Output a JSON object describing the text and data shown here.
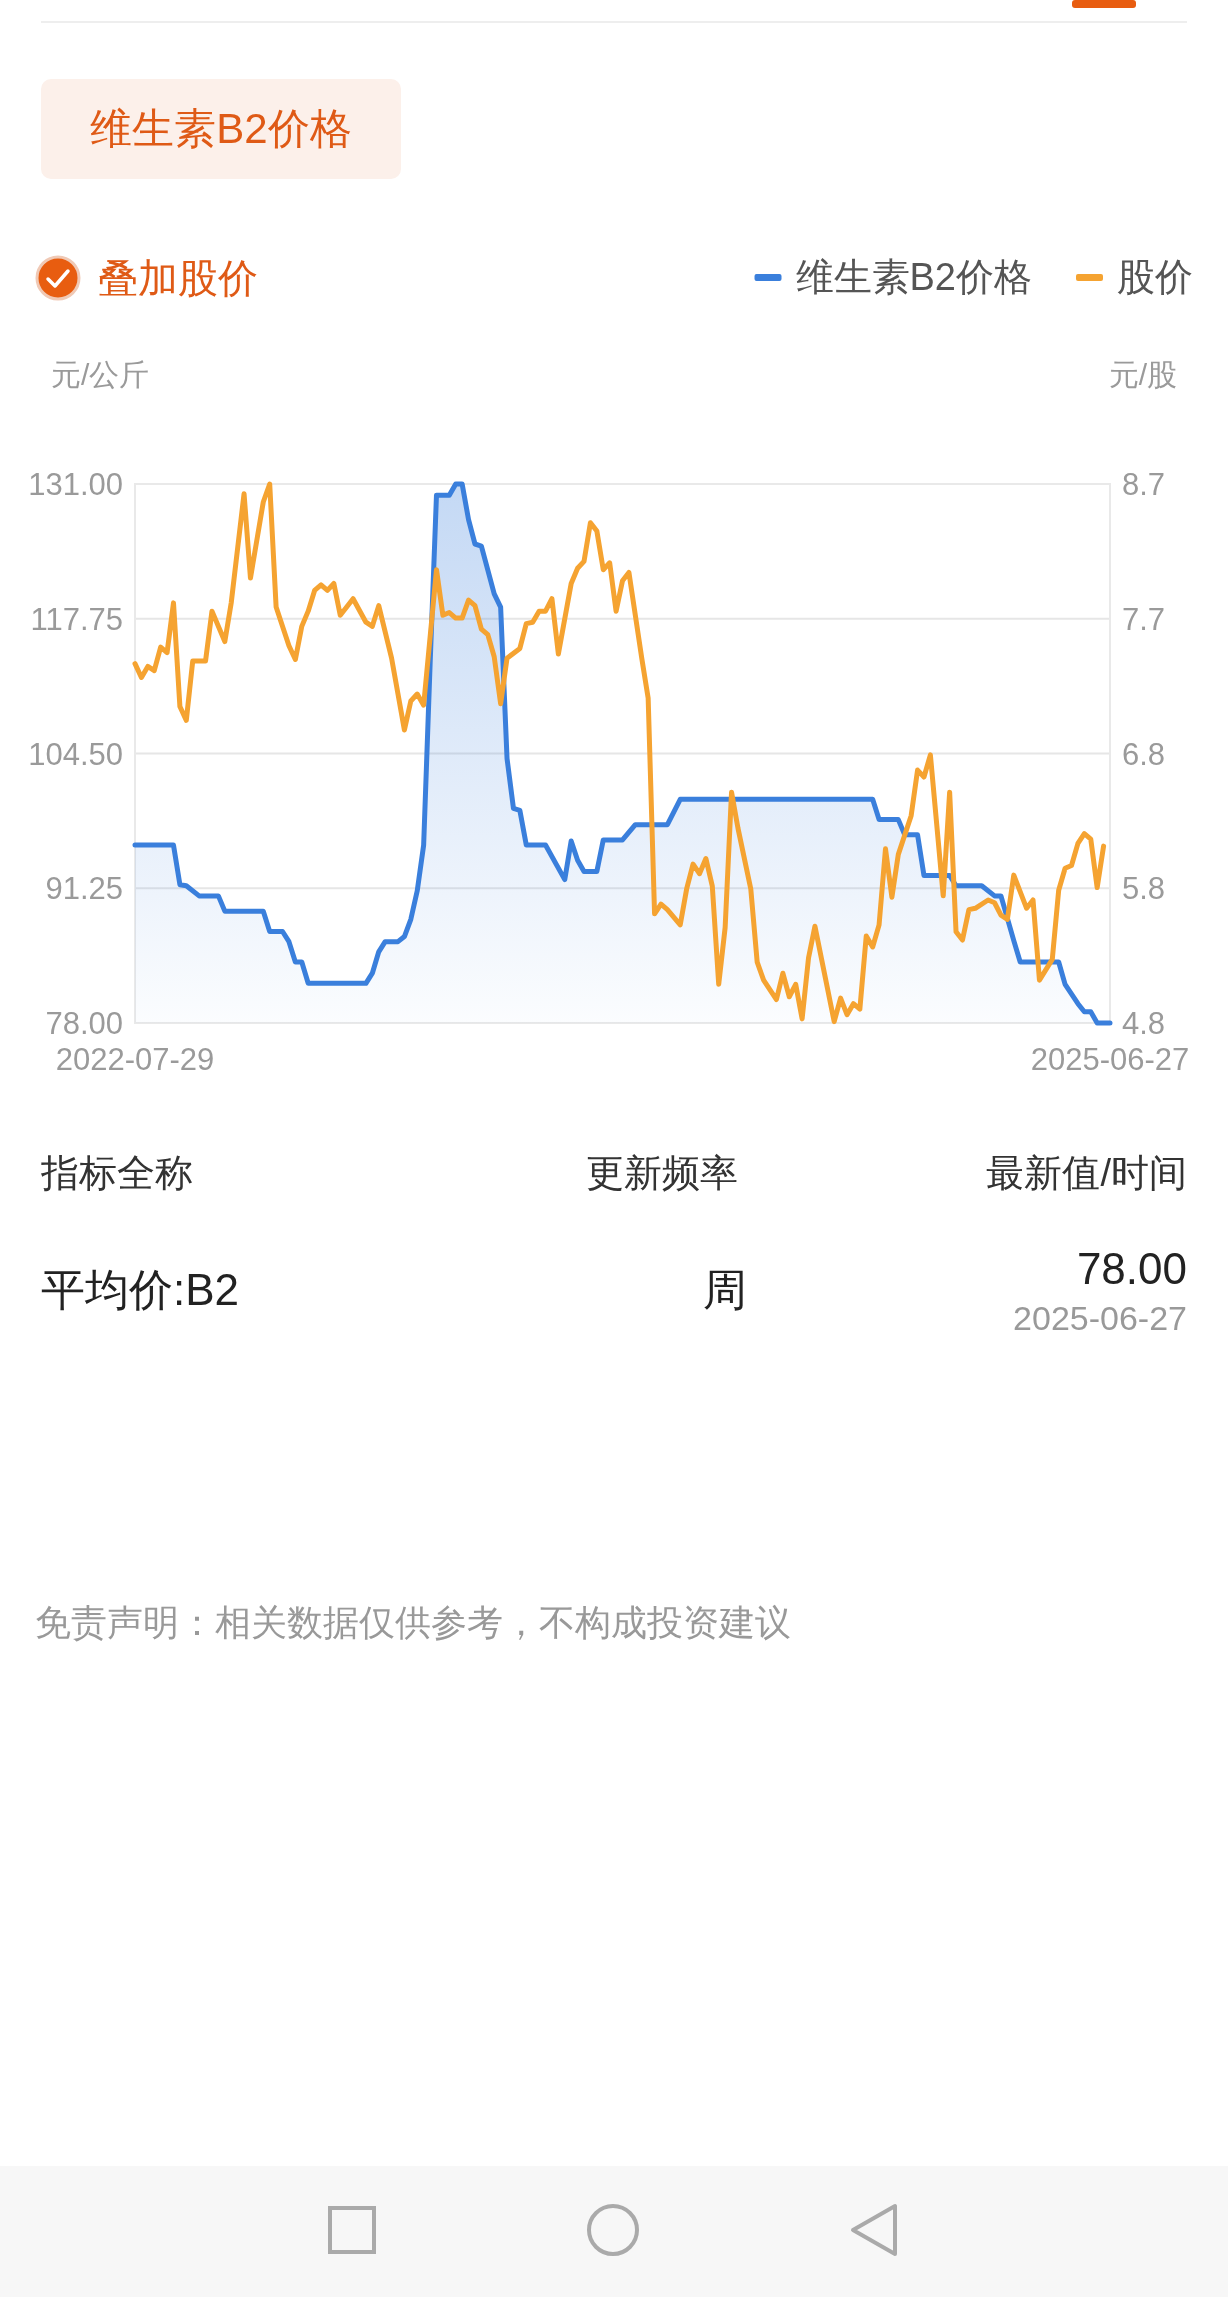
{
  "chart_data": {
    "type": "line",
    "title": "维生素B2价格",
    "ylabel": "元/公斤",
    "y2label": "元/股",
    "xlim": [
      "2022-07-29",
      "2025-06-27"
    ],
    "xticks": [
      "2022-07-29",
      "2025-06-27"
    ],
    "ylim": [
      78,
      131
    ],
    "yticks": [
      {
        "value": 78,
        "label": "78.00"
      },
      {
        "value": 91.25,
        "label": "91.25"
      },
      {
        "value": 104.5,
        "label": "104.50"
      },
      {
        "value": 117.75,
        "label": "117.75"
      },
      {
        "value": 131,
        "label": "131.00"
      }
    ],
    "y2lim": [
      4.8,
      8.7
    ],
    "y2ticks": [
      {
        "value": 4.8,
        "label": "4.8"
      },
      {
        "value": 5.775,
        "label": "5.8"
      },
      {
        "value": 6.75,
        "label": "6.8"
      },
      {
        "value": 7.725,
        "label": "7.7"
      },
      {
        "value": 8.7,
        "label": "8.7"
      }
    ],
    "grid": "y",
    "legend": "top right",
    "series": [
      {
        "name": "维生素B2价格",
        "type": "area",
        "color": "#3a7fdc",
        "x": [
          "2022-07-29",
          "2022-09-09",
          "2022-09-16",
          "2022-09-23",
          "2022-10-07",
          "2022-10-28",
          "2022-11-04",
          "2022-12-16",
          "2022-12-23",
          "2023-01-06",
          "2023-01-13",
          "2023-01-20",
          "2023-01-27",
          "2023-02-03",
          "2023-04-07",
          "2023-04-14",
          "2023-04-21",
          "2023-04-28",
          "2023-05-12",
          "2023-05-19",
          "2023-05-26",
          "2023-06-02",
          "2023-06-09",
          "2023-06-16",
          "2023-06-23",
          "2023-07-07",
          "2023-07-14",
          "2023-07-21",
          "2023-07-28",
          "2023-08-04",
          "2023-08-11",
          "2023-08-25",
          "2023-09-01",
          "2023-09-08",
          "2023-09-15",
          "2023-09-22",
          "2023-09-29",
          "2023-10-20",
          "2023-11-10",
          "2023-11-17",
          "2023-11-24",
          "2023-12-01",
          "2023-12-15",
          "2023-12-22",
          "2024-01-12",
          "2024-01-26",
          "2024-03-01",
          "2024-03-15",
          "2024-10-11",
          "2024-10-18",
          "2024-11-08",
          "2024-11-15",
          "2024-11-29",
          "2024-12-06",
          "2025-01-03",
          "2025-01-10",
          "2025-02-07",
          "2025-02-21",
          "2025-02-28",
          "2025-03-14",
          "2025-03-21",
          "2025-05-02",
          "2025-05-09",
          "2025-05-23",
          "2025-05-30",
          "2025-06-06",
          "2025-06-13",
          "2025-06-27"
        ],
        "values": [
          95.5,
          95.5,
          91.6,
          91.5,
          90.5,
          90.5,
          89.0,
          89.0,
          87.0,
          87.0,
          86.0,
          84.0,
          84.0,
          81.9,
          81.9,
          82.9,
          85.0,
          86.0,
          86.0,
          86.5,
          88.2,
          91.0,
          95.5,
          113.2,
          129.9,
          129.9,
          131.0,
          131.0,
          127.5,
          125.1,
          124.9,
          120.2,
          118.9,
          104.0,
          99.1,
          98.9,
          95.5,
          95.5,
          92.1,
          95.9,
          94.0,
          92.9,
          92.9,
          96.0,
          96.0,
          97.5,
          97.5,
          100.0,
          100.0,
          98.0,
          98.0,
          96.5,
          96.5,
          92.5,
          92.5,
          91.5,
          91.5,
          90.5,
          90.5,
          86.1,
          84.0,
          84.0,
          81.8,
          79.9,
          79.1,
          79.1,
          78.0,
          78.0
        ]
      },
      {
        "name": "股价",
        "color": "#f5a331",
        "axis": "y2",
        "x": [
          "2022-07-29",
          "2022-08-05",
          "2022-08-12",
          "2022-08-19",
          "2022-08-26",
          "2022-09-02",
          "2022-09-09",
          "2022-09-16",
          "2022-09-23",
          "2022-09-30",
          "2022-10-14",
          "2022-10-21",
          "2022-11-04",
          "2022-11-11",
          "2022-11-25",
          "2022-12-02",
          "2022-12-16",
          "2022-12-23",
          "2022-12-30",
          "2023-01-13",
          "2023-01-20",
          "2023-01-27",
          "2023-02-03",
          "2023-02-10",
          "2023-02-17",
          "2023-02-24",
          "2023-03-03",
          "2023-03-10",
          "2023-03-24",
          "2023-04-07",
          "2023-04-14",
          "2023-04-21",
          "2023-05-05",
          "2023-05-19",
          "2023-05-26",
          "2023-06-02",
          "2023-06-09",
          "2023-06-23",
          "2023-06-30",
          "2023-07-07",
          "2023-07-14",
          "2023-07-21",
          "2023-07-28",
          "2023-08-04",
          "2023-08-11",
          "2023-08-18",
          "2023-08-25",
          "2023-09-01",
          "2023-09-08",
          "2023-09-22",
          "2023-09-29",
          "2023-10-06",
          "2023-10-13",
          "2023-10-20",
          "2023-10-27",
          "2023-11-03",
          "2023-11-17",
          "2023-11-24",
          "2023-12-01",
          "2023-12-08",
          "2023-12-15",
          "2023-12-22",
          "2023-12-29",
          "2024-01-05",
          "2024-01-12",
          "2024-01-19",
          "2024-02-02",
          "2024-02-09",
          "2024-02-16",
          "2024-02-23",
          "2024-03-01",
          "2024-03-15",
          "2024-03-22",
          "2024-03-29",
          "2024-04-05",
          "2024-04-12",
          "2024-04-19",
          "2024-04-26",
          "2024-05-03",
          "2024-05-10",
          "2024-05-17",
          "2024-05-31",
          "2024-06-07",
          "2024-06-14",
          "2024-06-28",
          "2024-07-05",
          "2024-07-12",
          "2024-07-19",
          "2024-07-26",
          "2024-08-02",
          "2024-08-09",
          "2024-08-30",
          "2024-09-06",
          "2024-09-13",
          "2024-09-20",
          "2024-09-27",
          "2024-10-04",
          "2024-10-11",
          "2024-10-18",
          "2024-10-25",
          "2024-11-01",
          "2024-11-08",
          "2024-11-22",
          "2024-11-29",
          "2024-12-06",
          "2024-12-13",
          "2024-12-27",
          "2025-01-03",
          "2025-01-10",
          "2025-01-17",
          "2025-01-24",
          "2025-01-31",
          "2025-02-14",
          "2025-02-21",
          "2025-02-28",
          "2025-03-07",
          "2025-03-14",
          "2025-03-28",
          "2025-04-04",
          "2025-04-11",
          "2025-04-25",
          "2025-05-02",
          "2025-05-09",
          "2025-05-16",
          "2025-05-23",
          "2025-05-30",
          "2025-06-06",
          "2025-06-13",
          "2025-06-20"
        ],
        "values": [
          7.4,
          7.3,
          7.38,
          7.35,
          7.52,
          7.48,
          7.84,
          7.09,
          6.99,
          7.42,
          7.42,
          7.78,
          7.56,
          7.84,
          8.63,
          8.02,
          8.57,
          8.7,
          7.81,
          7.53,
          7.43,
          7.67,
          7.78,
          7.93,
          7.97,
          7.93,
          7.98,
          7.75,
          7.87,
          7.7,
          7.67,
          7.82,
          7.44,
          6.92,
          7.13,
          7.18,
          7.1,
          8.08,
          7.75,
          7.77,
          7.73,
          7.73,
          7.86,
          7.82,
          7.65,
          7.61,
          7.45,
          7.11,
          7.44,
          7.51,
          7.69,
          7.7,
          7.78,
          7.78,
          7.87,
          7.47,
          7.98,
          8.09,
          8.14,
          8.42,
          8.36,
          8.08,
          8.13,
          7.78,
          8.0,
          8.06,
          7.44,
          7.15,
          5.59,
          5.66,
          5.62,
          5.51,
          5.77,
          5.95,
          5.88,
          5.99,
          5.79,
          5.08,
          5.49,
          6.47,
          6.21,
          5.77,
          5.24,
          5.11,
          4.97,
          5.16,
          4.99,
          5.08,
          4.83,
          5.27,
          5.5,
          4.81,
          4.98,
          4.86,
          4.94,
          4.9,
          5.43,
          5.35,
          5.51,
          6.06,
          5.71,
          6.02,
          6.3,
          6.63,
          6.58,
          6.74,
          5.72,
          6.47,
          5.46,
          5.4,
          5.62,
          5.63,
          5.69,
          5.67,
          5.58,
          5.55,
          5.87,
          5.63,
          5.69,
          5.11,
          5.26,
          5.76,
          5.92,
          5.94,
          6.1,
          6.17,
          6.13,
          5.78,
          6.08
        ]
      }
    ],
    "annotations": [
      "叠加股价",
      "指标全称",
      "更新频率",
      "最新值/时间",
      "平均价:B2",
      "周",
      "78.00",
      "2025-06-27",
      "免责声明：相关数据仅供参考，不构成投资建议"
    ]
  }
}
